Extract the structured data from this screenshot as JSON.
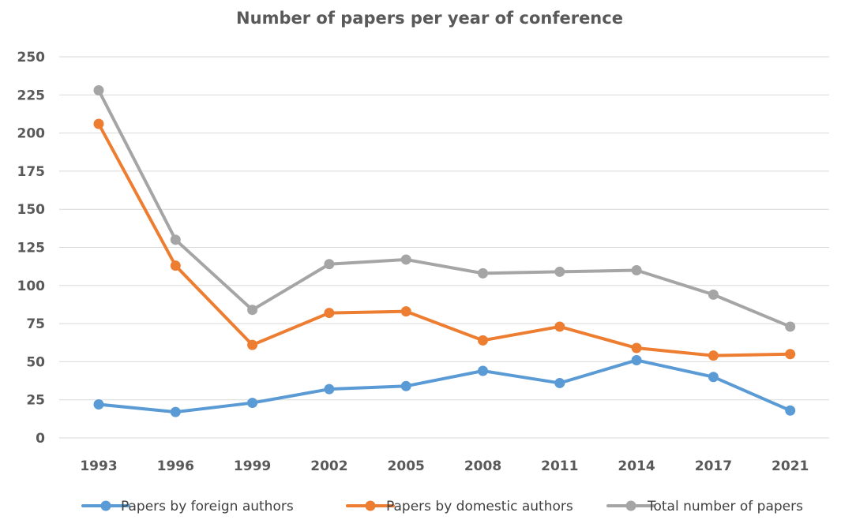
{
  "chart_data": {
    "type": "line",
    "title": "Number of papers per year of conference",
    "xlabel": "",
    "ylabel": "",
    "categories": [
      "1993",
      "1996",
      "1999",
      "2002",
      "2005",
      "2008",
      "2011",
      "2014",
      "2017",
      "2021"
    ],
    "ylim": [
      0,
      250
    ],
    "yticks": [
      "0",
      "25",
      "50",
      "75",
      "100",
      "125",
      "150",
      "175",
      "200",
      "225",
      "250"
    ],
    "grid": true,
    "legend_position": "bottom",
    "series": [
      {
        "name": "Papers by foreign authors",
        "color": "#5b9bd5",
        "values": [
          22,
          17,
          23,
          32,
          34,
          44,
          36,
          51,
          40,
          18
        ]
      },
      {
        "name": "Papers by domestic authors",
        "color": "#ed7d31",
        "values": [
          206,
          113,
          61,
          82,
          83,
          64,
          73,
          59,
          54,
          55
        ]
      },
      {
        "name": "Total number of papers",
        "color": "#a5a5a5",
        "values": [
          228,
          130,
          84,
          114,
          117,
          108,
          109,
          110,
          94,
          73
        ]
      }
    ]
  }
}
